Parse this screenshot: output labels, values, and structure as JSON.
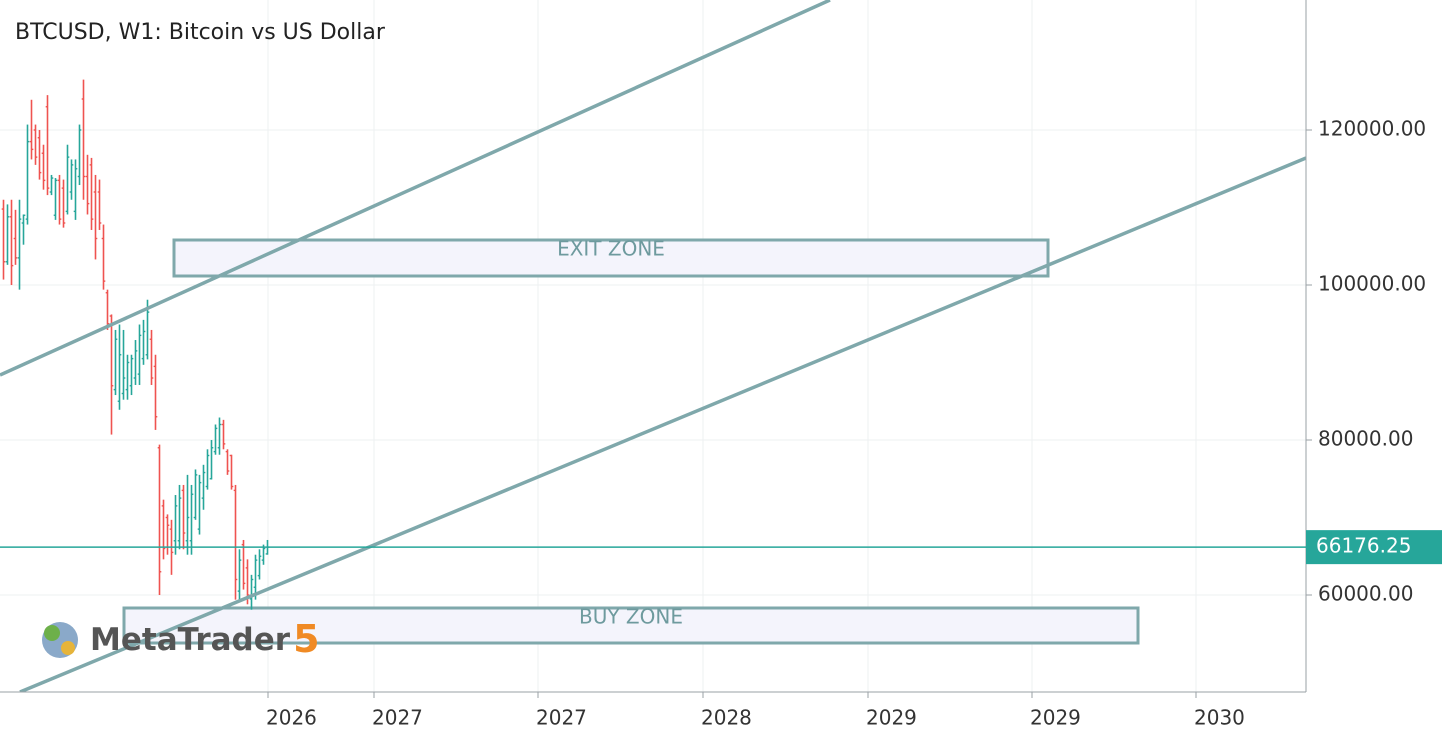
{
  "chart_data": {
    "type": "ohlc",
    "title": "BTCUSD, W1: Bitcoin vs US Dollar",
    "open": [
      109800,
      103000,
      108800,
      106000,
      103500,
      108000,
      108500,
      118500,
      120000,
      119000,
      117000,
      123000,
      112000,
      109000,
      113500,
      112500,
      109500,
      112000,
      109500,
      114000,
      124000,
      114000,
      115500,
      112000,
      112000,
      106000,
      99000,
      96000,
      86500,
      85000,
      86000,
      86500,
      87000,
      88000,
      88500,
      90500,
      91000,
      93000,
      89500,
      79000,
      71500,
      70000,
      68500,
      67000,
      67000,
      73500,
      67000,
      67000,
      70000,
      68500,
      72500,
      74000,
      75000,
      78500,
      79000,
      82000,
      78500,
      78000,
      73500,
      60500,
      66500,
      63500,
      59500,
      61000,
      62500,
      64500,
      65300
    ],
    "high": [
      111000,
      110400,
      111000,
      109700,
      111000,
      109100,
      120700,
      123900,
      120700,
      120000,
      118100,
      124500,
      114200,
      113800,
      114200,
      113600,
      118100,
      116200,
      116200,
      120700,
      126500,
      116800,
      116400,
      114200,
      113600,
      107800,
      99400,
      96200,
      94200,
      94900,
      94200,
      91000,
      91000,
      92900,
      94900,
      95500,
      98100,
      94200,
      91000,
      79400,
      72300,
      70400,
      69700,
      72900,
      74200,
      74200,
      75500,
      74200,
      76200,
      75500,
      76800,
      78800,
      80000,
      82000,
      82900,
      82600,
      78800,
      78100,
      74200,
      65900,
      67100,
      64600,
      62600,
      65200,
      65900,
      66500,
      67100
    ],
    "low": [
      100700,
      102600,
      100000,
      102600,
      99400,
      105200,
      107800,
      116200,
      115500,
      113600,
      112300,
      111600,
      111600,
      108400,
      107800,
      107400,
      109100,
      111000,
      108400,
      112900,
      111000,
      109100,
      107100,
      103300,
      107100,
      99400,
      94200,
      80700,
      85800,
      83900,
      85200,
      85200,
      85800,
      87100,
      87100,
      89700,
      90400,
      87100,
      81300,
      60000,
      64600,
      65200,
      62600,
      65200,
      65900,
      65900,
      65200,
      65200,
      69700,
      67800,
      71000,
      73600,
      74900,
      78100,
      78100,
      78800,
      75500,
      73600,
      59400,
      59400,
      60700,
      58800,
      58100,
      59400,
      62000,
      63900,
      65200
    ],
    "close": [
      103000,
      108800,
      102500,
      103500,
      108500,
      109000,
      118500,
      117500,
      116500,
      114500,
      113500,
      112500,
      113800,
      113500,
      108500,
      108000,
      116500,
      115500,
      115000,
      120000,
      114000,
      110500,
      108500,
      106000,
      108000,
      100500,
      95000,
      87000,
      93000,
      91000,
      88000,
      90000,
      90500,
      91500,
      93500,
      94000,
      96500,
      88000,
      83000,
      63000,
      66000,
      69000,
      65500,
      71500,
      72500,
      68000,
      70000,
      73000,
      75500,
      74500,
      75800,
      78000,
      79000,
      81500,
      82000,
      79500,
      76000,
      74000,
      62000,
      64500,
      61500,
      60000,
      62000,
      64500,
      65000,
      66000,
      66176.25
    ],
    "up_color": "#26a69a",
    "down_color": "#ef5350",
    "xlim": [
      -0.75,
      325.75
    ],
    "xticks": [
      {
        "value": 66.25,
        "label": "2026"
      },
      {
        "value": 92.75,
        "label": "2027"
      },
      {
        "value": 133.75,
        "label": "2027"
      },
      {
        "value": 175,
        "label": "2028"
      },
      {
        "value": 216.25,
        "label": "2029"
      },
      {
        "value": 257.25,
        "label": "2029"
      },
      {
        "value": 298.25,
        "label": "2030"
      }
    ],
    "ylim": [
      47484,
      136774
    ],
    "yticks": [
      {
        "value": 60000,
        "label": "60000.00"
      },
      {
        "value": 80000,
        "label": "80000.00"
      },
      {
        "value": 100000,
        "label": "100000.00"
      },
      {
        "value": 120000,
        "label": "120000.00"
      }
    ],
    "grid": true,
    "current_price": {
      "value": 66176.25,
      "color": "#26a69a"
    },
    "drawing_color": "#7fa8ab",
    "trend_lines": [
      {
        "x": [
          -0.75,
          206.75
        ],
        "y": [
          88387,
          136774
        ]
      },
      {
        "x": [
          4.25,
          325.75
        ],
        "y": [
          47484,
          116387
        ]
      }
    ],
    "zones": [
      {
        "label": "EXIT ZONE",
        "x": [
          42.75,
          261.25
        ],
        "y": [
          101161,
          105806
        ]
      },
      {
        "label": "BUY ZONE",
        "x": [
          30.25,
          283.75
        ],
        "y": [
          53806,
          58323
        ]
      }
    ],
    "watermark": {
      "brand": "MetaTrader",
      "version": "5"
    }
  }
}
